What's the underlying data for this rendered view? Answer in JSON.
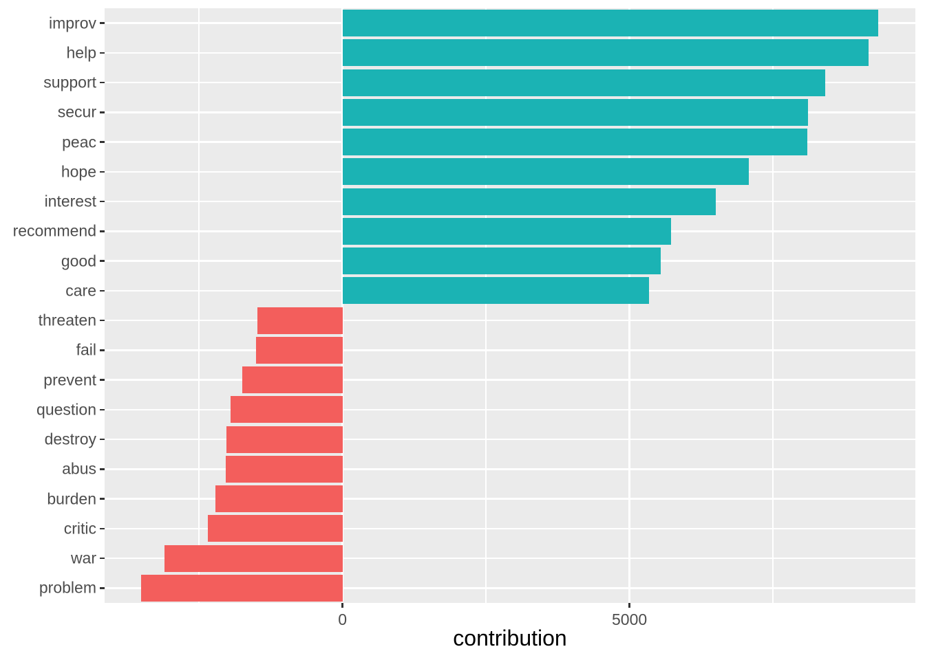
{
  "chart_data": {
    "type": "bar",
    "orientation": "horizontal",
    "title": "",
    "xlabel": "contribution",
    "ylabel": "",
    "legend": "none",
    "grid": "on",
    "categories": [
      "improv",
      "help",
      "support",
      "secur",
      "peac",
      "hope",
      "interest",
      "recommend",
      "good",
      "care",
      "threaten",
      "fail",
      "prevent",
      "question",
      "destroy",
      "abus",
      "burden",
      "critic",
      "war",
      "problem"
    ],
    "values": [
      9330,
      9170,
      8410,
      8110,
      8100,
      7080,
      6500,
      5720,
      5540,
      5340,
      -1480,
      -1510,
      -1750,
      -1950,
      -2020,
      -2030,
      -2210,
      -2350,
      -3100,
      -3510
    ],
    "axis": {
      "x_tick_values": [
        0,
        5000
      ],
      "x_tick_labels": [
        "0",
        "5000"
      ],
      "x_minor_gridlines": [
        -2500,
        2500,
        7500
      ],
      "x_range": [
        -4146,
        9982
      ],
      "bar_fraction": 0.9
    },
    "colors": {
      "positive": "#1BB3B4",
      "negative": "#F35E5C",
      "panel_bg": "#EBEBEB",
      "gridline": "#FFFFFF",
      "axis_text": "#4D4D4D",
      "tick_mark": "#333333",
      "title_text": "#000000"
    }
  }
}
